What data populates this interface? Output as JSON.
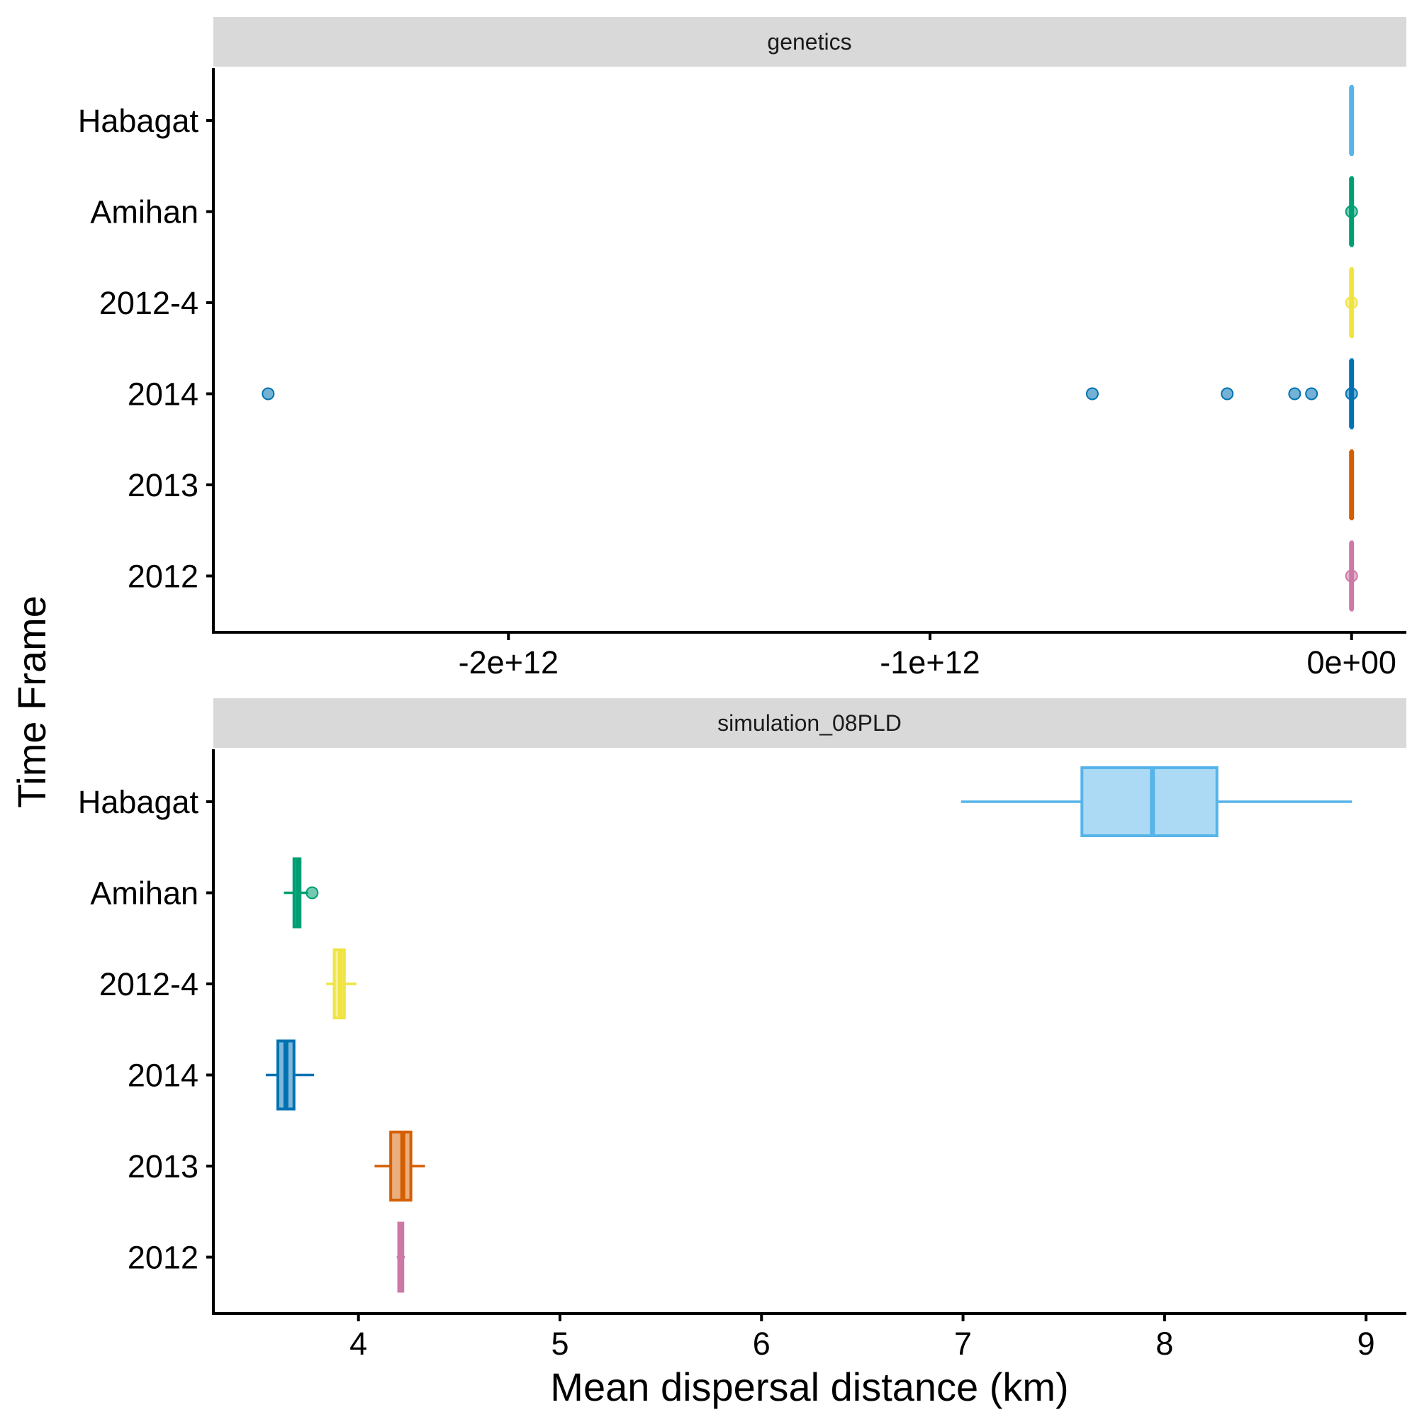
{
  "figure": {
    "y_axis_title": "Time Frame",
    "x_axis_title": "Mean dispersal distance (km)"
  },
  "categories": [
    "Habagat",
    "Amihan",
    "2012-4",
    "2014",
    "2013",
    "2012"
  ],
  "colors": {
    "Habagat": "#56B4E9",
    "Amihan": "#009E73",
    "2012-4": "#F0E442",
    "2014": "#0072B2",
    "2013": "#D55E00",
    "2012": "#CC79A7"
  },
  "chart_data": [
    {
      "type": "boxplot",
      "panel": "genetics",
      "orientation": "horizontal",
      "xlim": [
        -2700000000000.0,
        130000000000.0
      ],
      "x_ticks": [
        -2000000000000.0,
        -1000000000000.0,
        0
      ],
      "x_tick_labels": [
        "-2e+12",
        "-1e+12",
        "0e+00"
      ],
      "series": [
        {
          "category": "Habagat",
          "min": 0,
          "q1": 0,
          "median": 0,
          "q3": 0,
          "max": 0,
          "outliers": []
        },
        {
          "category": "Amihan",
          "min": 0,
          "q1": 0,
          "median": 0,
          "q3": 0,
          "max": 0,
          "outliers": [
            0
          ]
        },
        {
          "category": "2012-4",
          "min": 0,
          "q1": 0,
          "median": 0,
          "q3": 0,
          "max": 0,
          "outliers": [
            0
          ]
        },
        {
          "category": "2014",
          "min": 0,
          "q1": 0,
          "median": 0,
          "q3": 0,
          "max": 0,
          "outliers": [
            -2570000000000.0,
            -615000000000.0,
            -295000000000.0,
            -135000000000.0,
            -95000000000.0,
            0
          ]
        },
        {
          "category": "2013",
          "min": 0,
          "q1": 0,
          "median": 0,
          "q3": 0,
          "max": 0,
          "outliers": []
        },
        {
          "category": "2012",
          "min": 0,
          "q1": 0,
          "median": 0,
          "q3": 0,
          "max": 0,
          "outliers": [
            0
          ]
        }
      ]
    },
    {
      "type": "boxplot",
      "panel": "simulation_08PLD",
      "orientation": "horizontal",
      "xlim": [
        3.28,
        9.2
      ],
      "x_ticks": [
        4,
        5,
        6,
        7,
        8,
        9
      ],
      "x_tick_labels": [
        "4",
        "5",
        "6",
        "7",
        "8",
        "9"
      ],
      "series": [
        {
          "category": "Habagat",
          "min": 6.99,
          "q1": 7.59,
          "median": 7.94,
          "q3": 8.26,
          "max": 8.93,
          "outliers": []
        },
        {
          "category": "Amihan",
          "min": 3.63,
          "q1": 3.68,
          "median": 3.7,
          "q3": 3.71,
          "max": 3.75,
          "outliers": [
            3.77
          ]
        },
        {
          "category": "2012-4",
          "min": 3.84,
          "q1": 3.88,
          "median": 3.91,
          "q3": 3.93,
          "max": 3.99,
          "outliers": []
        },
        {
          "category": "2014",
          "min": 3.54,
          "q1": 3.6,
          "median": 3.64,
          "q3": 3.68,
          "max": 3.78,
          "outliers": []
        },
        {
          "category": "2013",
          "min": 4.08,
          "q1": 4.16,
          "median": 4.22,
          "q3": 4.26,
          "max": 4.33,
          "outliers": []
        },
        {
          "category": "2012",
          "min": 4.19,
          "q1": 4.2,
          "median": 4.21,
          "q3": 4.22,
          "max": 4.23,
          "outliers": []
        }
      ]
    }
  ]
}
